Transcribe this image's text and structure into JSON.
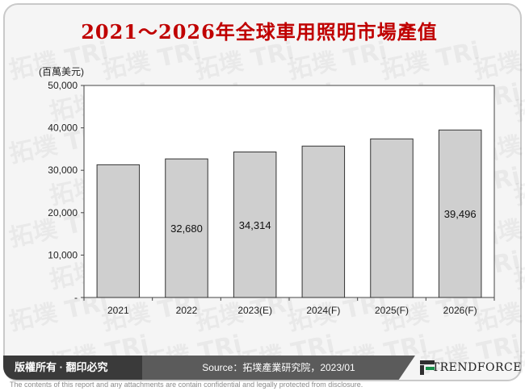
{
  "chart_data": {
    "type": "bar",
    "title": "2021～2026年全球車用照明市場產值",
    "ylabel": "(百萬美元)",
    "categories": [
      "2021",
      "2022",
      "2023(E)",
      "2024(F)",
      "2025(F)",
      "2026(F)"
    ],
    "values": [
      31300,
      32680,
      34314,
      35700,
      37400,
      39496
    ],
    "data_labels": [
      "",
      "32,680",
      "34,314",
      "",
      "",
      "39,496"
    ],
    "ylim": [
      0,
      50000
    ],
    "yticks": [
      0,
      10000,
      20000,
      30000,
      40000,
      50000
    ],
    "ytick_labels": [
      "-",
      "10,000",
      "20,000",
      "30,000",
      "40,000",
      "50,000"
    ],
    "grid": false,
    "bar_color": "#cfcfcf",
    "bar_edge_color": "#333333"
  },
  "footer": {
    "rights": "版權所有 · 翻印必究",
    "source": "Source：拓墣產業研究院，2023/01",
    "brand": "TRENDFORCE"
  },
  "disclaimer": "The contents of this report and any attachments are contain confidential and legally protected from disclosure.",
  "watermark_text": "拓墣 TRi",
  "colors": {
    "title": "#c00000",
    "footer_dark": "#3a3a3a",
    "footer_mid": "#5b5b5b",
    "logo_green": "#17914a"
  }
}
